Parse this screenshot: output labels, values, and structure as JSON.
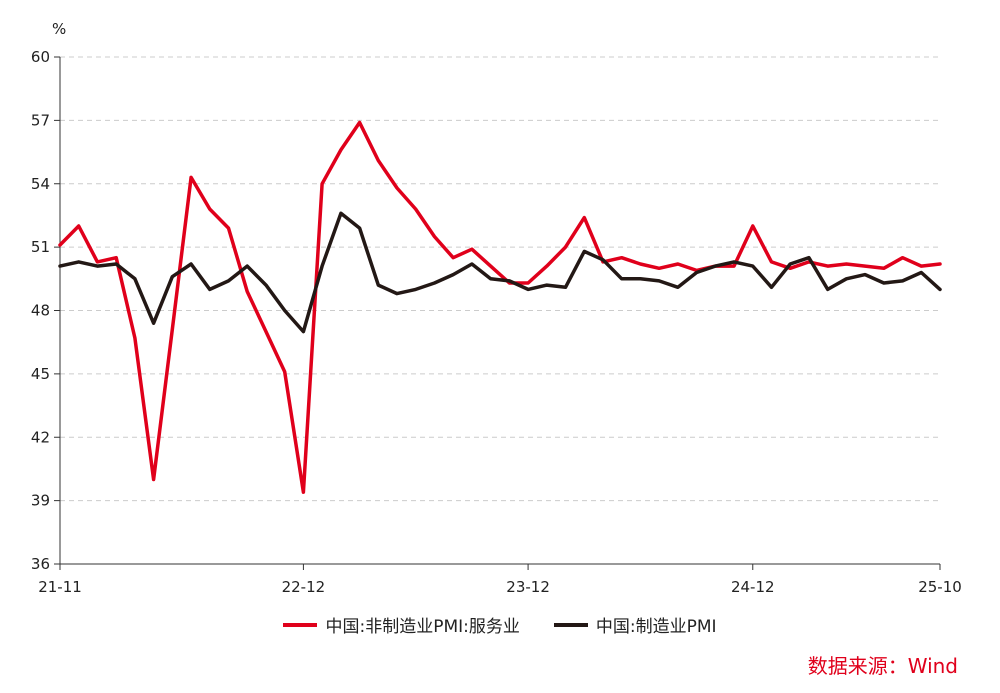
{
  "chart_data": {
    "type": "line",
    "unit": "%",
    "ylim": [
      36,
      60
    ],
    "yticks": [
      36,
      39,
      42,
      45,
      48,
      51,
      54,
      57,
      60
    ],
    "xtick_labels": [
      "21-11",
      "22-12",
      "23-12",
      "24-12",
      "25-10"
    ],
    "grid": true,
    "legend_position": "bottom-center",
    "series": [
      {
        "name": "中国:非制造业PMI:服务业",
        "color": "#e0001b",
        "values": [
          51.1,
          52.0,
          50.3,
          50.5,
          46.7,
          40.0,
          47.1,
          54.3,
          52.8,
          51.9,
          48.9,
          47.0,
          45.1,
          39.4,
          54.0,
          55.6,
          56.9,
          55.1,
          53.8,
          52.8,
          51.5,
          50.5,
          50.9,
          50.1,
          49.3,
          49.3,
          50.1,
          51.0,
          52.4,
          50.3,
          50.5,
          50.2,
          50.0,
          50.2,
          49.9,
          50.1,
          50.1,
          52.0,
          50.3,
          50.0,
          50.3,
          50.1,
          50.2,
          50.1,
          50.0,
          50.5,
          50.1,
          50.2
        ],
        "note_values_in_percent": true
      },
      {
        "name": "中国:制造业PMI",
        "color": "#231815",
        "values": [
          50.1,
          50.3,
          50.1,
          50.2,
          49.5,
          47.4,
          49.6,
          50.2,
          49.0,
          49.4,
          50.1,
          49.2,
          48.0,
          47.0,
          50.1,
          52.6,
          51.9,
          49.2,
          48.8,
          49.0,
          49.3,
          49.7,
          50.2,
          49.5,
          49.4,
          49.0,
          49.2,
          49.1,
          50.8,
          50.4,
          49.5,
          49.5,
          49.4,
          49.1,
          49.8,
          50.1,
          50.3,
          50.1,
          49.1,
          50.2,
          50.5,
          49.0,
          49.5,
          49.7,
          49.3,
          49.4,
          49.8,
          49.0
        ]
      }
    ]
  },
  "source": "数据来源：Wind"
}
